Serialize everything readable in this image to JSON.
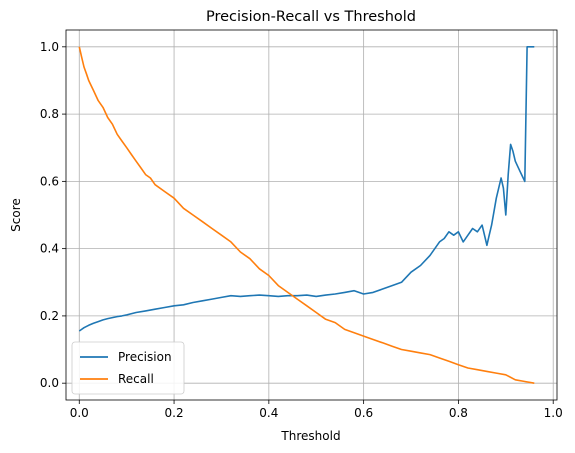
{
  "chart_data": {
    "type": "line",
    "title": "Precision-Recall vs Threshold",
    "xlabel": "Threshold",
    "ylabel": "Score",
    "xlim": [
      -0.028,
      1.008
    ],
    "ylim": [
      -0.05,
      1.05
    ],
    "xticks": [
      0.0,
      0.2,
      0.4,
      0.6,
      0.8,
      1.0
    ],
    "xtick_labels": [
      "0.0",
      "0.2",
      "0.4",
      "0.6",
      "0.8",
      "1.0"
    ],
    "yticks": [
      0.0,
      0.2,
      0.4,
      0.6,
      0.8,
      1.0
    ],
    "ytick_labels": [
      "0.0",
      "0.2",
      "0.4",
      "0.6",
      "0.8",
      "1.0"
    ],
    "grid": true,
    "legend_position": "lower-left",
    "series": [
      {
        "name": "Precision",
        "color": "#1f77b4",
        "x": [
          0.0,
          0.005,
          0.01,
          0.02,
          0.03,
          0.04,
          0.05,
          0.06,
          0.07,
          0.08,
          0.09,
          0.1,
          0.12,
          0.14,
          0.16,
          0.18,
          0.2,
          0.22,
          0.24,
          0.26,
          0.28,
          0.3,
          0.32,
          0.34,
          0.36,
          0.38,
          0.4,
          0.42,
          0.44,
          0.46,
          0.48,
          0.5,
          0.52,
          0.54,
          0.56,
          0.58,
          0.6,
          0.62,
          0.64,
          0.66,
          0.68,
          0.7,
          0.72,
          0.74,
          0.76,
          0.77,
          0.78,
          0.79,
          0.8,
          0.81,
          0.82,
          0.83,
          0.84,
          0.85,
          0.86,
          0.865,
          0.87,
          0.88,
          0.89,
          0.895,
          0.9,
          0.905,
          0.91,
          0.915,
          0.92,
          0.93,
          0.94,
          0.945,
          0.95,
          0.96
        ],
        "y": [
          0.155,
          0.16,
          0.165,
          0.172,
          0.178,
          0.183,
          0.188,
          0.192,
          0.195,
          0.198,
          0.2,
          0.203,
          0.21,
          0.215,
          0.22,
          0.225,
          0.23,
          0.233,
          0.24,
          0.245,
          0.25,
          0.255,
          0.26,
          0.258,
          0.26,
          0.262,
          0.26,
          0.258,
          0.26,
          0.26,
          0.262,
          0.258,
          0.262,
          0.265,
          0.27,
          0.275,
          0.265,
          0.27,
          0.28,
          0.29,
          0.3,
          0.33,
          0.35,
          0.38,
          0.42,
          0.43,
          0.45,
          0.44,
          0.45,
          0.42,
          0.44,
          0.46,
          0.45,
          0.47,
          0.41,
          0.44,
          0.47,
          0.55,
          0.61,
          0.58,
          0.5,
          0.62,
          0.71,
          0.69,
          0.66,
          0.63,
          0.6,
          1.0,
          1.0,
          1.0
        ]
      },
      {
        "name": "Recall",
        "color": "#ff7f0e",
        "x": [
          0.0,
          0.005,
          0.01,
          0.015,
          0.02,
          0.03,
          0.04,
          0.05,
          0.06,
          0.07,
          0.08,
          0.09,
          0.1,
          0.11,
          0.12,
          0.13,
          0.14,
          0.15,
          0.16,
          0.18,
          0.2,
          0.22,
          0.24,
          0.26,
          0.28,
          0.3,
          0.32,
          0.34,
          0.36,
          0.38,
          0.4,
          0.42,
          0.44,
          0.46,
          0.48,
          0.5,
          0.52,
          0.54,
          0.56,
          0.58,
          0.6,
          0.62,
          0.64,
          0.66,
          0.68,
          0.7,
          0.72,
          0.74,
          0.76,
          0.78,
          0.8,
          0.82,
          0.84,
          0.86,
          0.88,
          0.9,
          0.92,
          0.94,
          0.96
        ],
        "y": [
          1.0,
          0.97,
          0.94,
          0.92,
          0.9,
          0.87,
          0.84,
          0.82,
          0.79,
          0.77,
          0.74,
          0.72,
          0.7,
          0.68,
          0.66,
          0.64,
          0.62,
          0.61,
          0.59,
          0.57,
          0.55,
          0.52,
          0.5,
          0.48,
          0.46,
          0.44,
          0.42,
          0.39,
          0.37,
          0.34,
          0.32,
          0.29,
          0.27,
          0.25,
          0.23,
          0.21,
          0.19,
          0.18,
          0.16,
          0.15,
          0.14,
          0.13,
          0.12,
          0.11,
          0.1,
          0.095,
          0.09,
          0.085,
          0.075,
          0.065,
          0.055,
          0.045,
          0.04,
          0.035,
          0.03,
          0.025,
          0.01,
          0.005,
          0.0
        ]
      }
    ]
  }
}
